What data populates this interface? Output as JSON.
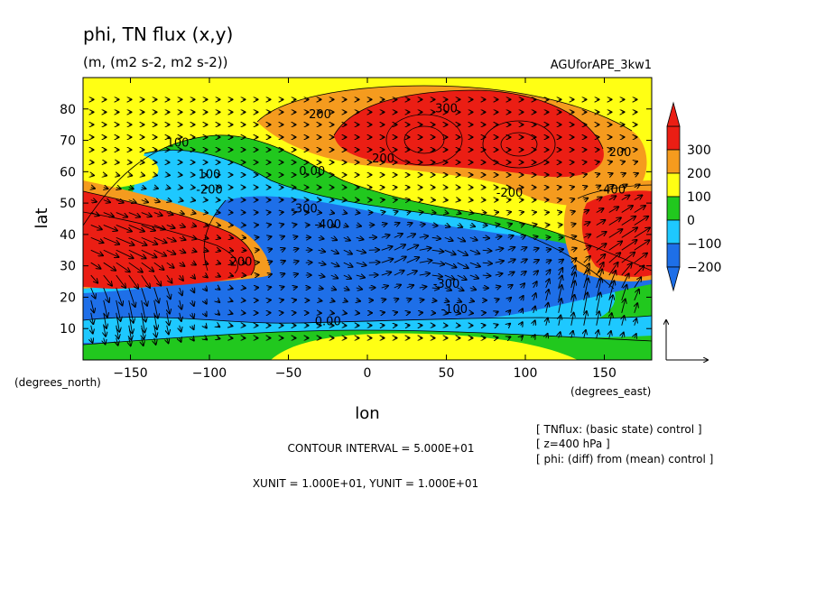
{
  "title": "phi, TN flux (x,y)",
  "subtitle": "(m, (m2 s-2, m2 s-2))",
  "run_name": "AGUforAPE_3kw1",
  "chart_data": {
    "type": "heatmap",
    "variable": "phi",
    "overlay": "TN flux vectors (x,y)",
    "xlabel": "lon",
    "ylabel": "lat",
    "xlim": [
      -180,
      180
    ],
    "ylim": [
      0,
      90
    ],
    "x_ticks": [
      -150,
      -100,
      -50,
      0,
      50,
      100,
      150
    ],
    "x_tick_labels": [
      "−150",
      "−100",
      "−50",
      "0",
      "50",
      "100",
      "150"
    ],
    "y_ticks": [
      10,
      20,
      30,
      40,
      50,
      60,
      70,
      80
    ],
    "y_tick_labels": [
      "10",
      "20",
      "30",
      "40",
      "50",
      "60",
      "70",
      "80"
    ],
    "x_units_label": "(degrees_east)",
    "y_units_label": "(degrees_north)",
    "colorbar": {
      "levels": [
        -250,
        -200,
        -100,
        0,
        100,
        200,
        300,
        350
      ],
      "tick_values": [
        300,
        200,
        100,
        0,
        -100,
        -200
      ],
      "tick_labels": [
        "300",
        "200",
        "100",
        "0",
        "−100",
        "−200"
      ],
      "colors": [
        "#1e6fe8",
        "#1ec8ff",
        "#21c81e",
        "#ffff14",
        "#f59b1e",
        "#eb1e14"
      ]
    },
    "contour_labels": [
      {
        "text": "300",
        "lon": 50,
        "lat": 79
      },
      {
        "text": "200",
        "lon": -30,
        "lat": 77
      },
      {
        "text": "200",
        "lon": 10,
        "lat": 63
      },
      {
        "text": "200",
        "lon": 160,
        "lat": 65
      },
      {
        "text": "100",
        "lon": -120,
        "lat": 68
      },
      {
        "text": "100",
        "lon": -100,
        "lat": 58
      },
      {
        "text": "0.00",
        "lon": -35,
        "lat": 59
      },
      {
        "text": "-200",
        "lon": -100,
        "lat": 53
      },
      {
        "text": "-300",
        "lon": -40,
        "lat": 47
      },
      {
        "text": "-400",
        "lon": -25,
        "lat": 42
      },
      {
        "text": "-400",
        "lon": 155,
        "lat": 53
      },
      {
        "text": "-300",
        "lon": 50,
        "lat": 23
      },
      {
        "text": "-100",
        "lon": 55,
        "lat": 15
      },
      {
        "text": "0.00",
        "lon": -25,
        "lat": 11
      },
      {
        "text": "200",
        "lon": -80,
        "lat": 30
      },
      {
        "text": "-200",
        "lon": 90,
        "lat": 52
      }
    ],
    "vector_reference": "reference arrow (x and y)"
  },
  "footer": {
    "contour_interval": "CONTOUR INTERVAL = 5.000E+01",
    "units": "XUNIT = 1.000E+01, YUNIT = 1.000E+01"
  },
  "notes": [
    "[ TNflux: (basic state) control ]",
    "[ z=400 hPa ]",
    "[ phi: (diff) from (mean) control ]"
  ]
}
